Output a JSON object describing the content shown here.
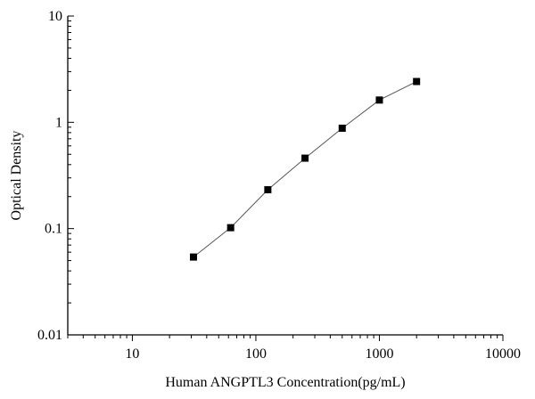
{
  "chart_data": {
    "type": "line",
    "title": "",
    "xlabel": "Human ANGPTL3 Concentration(pg/mL)",
    "ylabel": "Optical Density",
    "x_scale": "log",
    "y_scale": "log",
    "xlim": [
      3,
      10000
    ],
    "ylim": [
      0.01,
      10
    ],
    "x_ticks": [
      10,
      100,
      1000,
      10000
    ],
    "x_tick_labels": [
      "10",
      "100",
      "1000",
      "10000"
    ],
    "y_ticks": [
      0.01,
      0.1,
      1,
      10
    ],
    "y_tick_labels": [
      "0.01",
      "0.1",
      "1",
      "10"
    ],
    "grid": false,
    "legend": "none",
    "marker": "square",
    "colors": {
      "line": "#555555",
      "marker": "#000000",
      "axis": "#000000"
    },
    "series": [
      {
        "x": [
          31.25,
          62.5,
          125,
          250,
          500,
          1000,
          2000
        ],
        "y": [
          0.054,
          0.102,
          0.232,
          0.46,
          0.88,
          1.62,
          2.42
        ]
      }
    ]
  }
}
